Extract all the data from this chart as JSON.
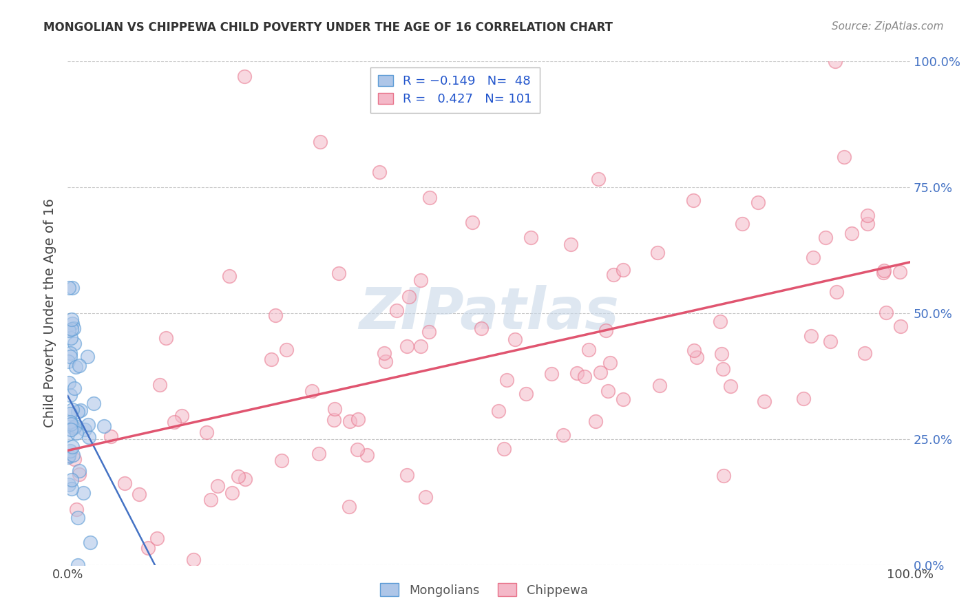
{
  "title": "MONGOLIAN VS CHIPPEWA CHILD POVERTY UNDER THE AGE OF 16 CORRELATION CHART",
  "source": "Source: ZipAtlas.com",
  "ylabel": "Child Poverty Under the Age of 16",
  "legend_r1": "R = -0.149",
  "legend_n1": "N=  48",
  "legend_r2": "R =  0.427",
  "legend_n2": "N= 101",
  "right_ytick_vals": [
    0.0,
    0.25,
    0.5,
    0.75,
    1.0
  ],
  "right_ytick_labels": [
    "0.0%",
    "25.0%",
    "50.0%",
    "75.0%",
    "100.0%"
  ],
  "bg_color": "#ffffff",
  "grid_color": "#bbbbbb",
  "mongolian_dot_color": "#aec6e8",
  "mongolian_dot_edge": "#5b9bd5",
  "chippewa_dot_color": "#f4b8c8",
  "chippewa_dot_edge": "#e8728a",
  "mongolian_line_color": "#4472c4",
  "chippewa_line_color": "#e05570",
  "watermark_color": "#c8d8e8",
  "tick_color": "#4472c4",
  "title_color": "#333333",
  "source_color": "#888888",
  "label_color": "#444444"
}
